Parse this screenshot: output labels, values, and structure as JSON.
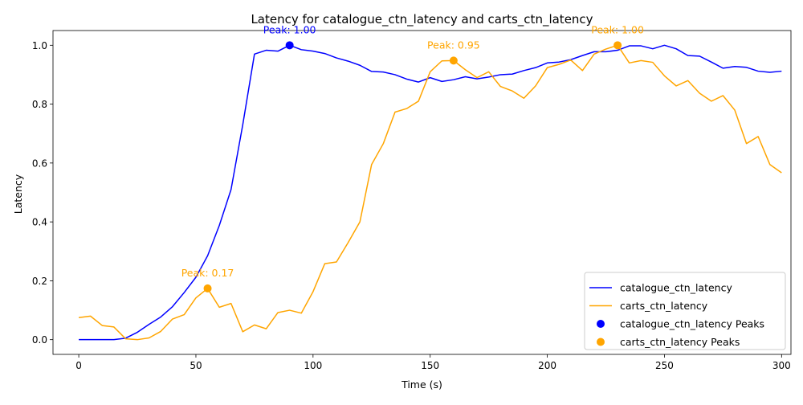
{
  "chart_data": {
    "type": "line",
    "title": "Latency for catalogue_ctn_latency and carts_ctn_latency",
    "xlabel": "Time (s)",
    "ylabel": "Latency",
    "xlim": [
      -11,
      304
    ],
    "ylim": [
      -0.05,
      1.05
    ],
    "xticks": [
      0,
      50,
      100,
      150,
      200,
      250,
      300
    ],
    "yticks": [
      0.0,
      0.2,
      0.4,
      0.6,
      0.8,
      1.0
    ],
    "xtick_labels": [
      "0",
      "50",
      "100",
      "150",
      "200",
      "250",
      "300"
    ],
    "ytick_labels": [
      "0.0",
      "0.2",
      "0.4",
      "0.6",
      "0.8",
      "1.0"
    ],
    "grid": false,
    "legend_position": "bottom-right",
    "x": [
      0,
      5,
      10,
      15,
      20,
      25,
      30,
      35,
      40,
      45,
      50,
      55,
      60,
      65,
      70,
      75,
      80,
      85,
      90,
      95,
      100,
      105,
      110,
      115,
      120,
      125,
      130,
      135,
      140,
      145,
      150,
      155,
      160,
      165,
      170,
      175,
      180,
      185,
      190,
      195,
      200,
      205,
      210,
      215,
      220,
      225,
      230,
      235,
      240,
      245,
      250,
      255,
      260,
      265,
      270,
      275,
      280,
      285,
      290,
      295,
      300
    ],
    "series": [
      {
        "name": "catalogue_ctn_latency",
        "color": "#0000ff",
        "values": [
          0.0,
          0.0,
          0.0,
          0.0,
          0.005,
          0.025,
          0.052,
          0.077,
          0.112,
          0.16,
          0.212,
          0.285,
          0.388,
          0.51,
          0.73,
          0.97,
          0.983,
          0.98,
          1.0,
          0.985,
          0.98,
          0.972,
          0.957,
          0.946,
          0.932,
          0.911,
          0.909,
          0.9,
          0.885,
          0.875,
          0.89,
          0.877,
          0.883,
          0.893,
          0.886,
          0.892,
          0.9,
          0.902,
          0.914,
          0.924,
          0.94,
          0.943,
          0.951,
          0.965,
          0.978,
          0.978,
          0.983,
          0.998,
          0.998,
          0.988,
          1.0,
          0.988,
          0.965,
          0.963,
          0.943,
          0.922,
          0.928,
          0.925,
          0.912,
          0.908,
          0.912
        ]
      },
      {
        "name": "carts_ctn_latency",
        "color": "#ffa500",
        "values": [
          0.075,
          0.08,
          0.048,
          0.043,
          0.003,
          0.0,
          0.006,
          0.028,
          0.07,
          0.085,
          0.142,
          0.174,
          0.11,
          0.123,
          0.027,
          0.05,
          0.037,
          0.092,
          0.1,
          0.09,
          0.163,
          0.258,
          0.264,
          0.33,
          0.4,
          0.595,
          0.666,
          0.773,
          0.785,
          0.81,
          0.91,
          0.947,
          0.948,
          0.917,
          0.89,
          0.91,
          0.86,
          0.845,
          0.82,
          0.862,
          0.924,
          0.935,
          0.95,
          0.914,
          0.97,
          0.987,
          1.0,
          0.94,
          0.948,
          0.942,
          0.896,
          0.862,
          0.88,
          0.837,
          0.81,
          0.829,
          0.78,
          0.666,
          0.69,
          0.595,
          0.567
        ]
      }
    ],
    "peaks": [
      {
        "series": "catalogue_ctn_latency",
        "legend_label": "catalogue_ctn_latency Peaks",
        "color": "#0000ff",
        "points": [
          {
            "x": 90,
            "y": 1.0,
            "label": "Peak: 1.00"
          }
        ]
      },
      {
        "series": "carts_ctn_latency",
        "legend_label": "carts_ctn_latency Peaks",
        "color": "#ffa500",
        "points": [
          {
            "x": 55,
            "y": 0.174,
            "label": "Peak: 0.17"
          },
          {
            "x": 160,
            "y": 0.948,
            "label": "Peak: 0.95"
          },
          {
            "x": 230,
            "y": 1.0,
            "label": "Peak: 1.00"
          }
        ]
      }
    ]
  }
}
